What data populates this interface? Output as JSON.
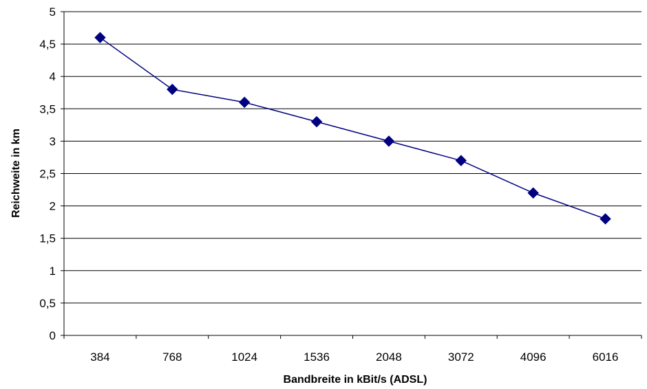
{
  "chart_data": {
    "type": "line",
    "categories": [
      "384",
      "768",
      "1024",
      "1536",
      "2048",
      "3072",
      "4096",
      "6016"
    ],
    "series": [
      {
        "values": [
          4.6,
          3.8,
          3.6,
          3.3,
          3.0,
          2.7,
          2.2,
          1.8
        ]
      }
    ],
    "xlabel": "Bandbreite in kBit/s (ADSL)",
    "ylabel": "Reichweite in km",
    "ylim": [
      0,
      5
    ],
    "yticks": [
      0,
      0.5,
      1,
      1.5,
      2,
      2.5,
      3,
      3.5,
      4,
      4.5,
      5
    ],
    "ytick_labels": [
      "0",
      "0,5",
      "1",
      "1,5",
      "2",
      "2,5",
      "3",
      "3,5",
      "4",
      "4,5",
      "5"
    ],
    "grid": true,
    "line_color": "#000080",
    "marker": "diamond"
  }
}
